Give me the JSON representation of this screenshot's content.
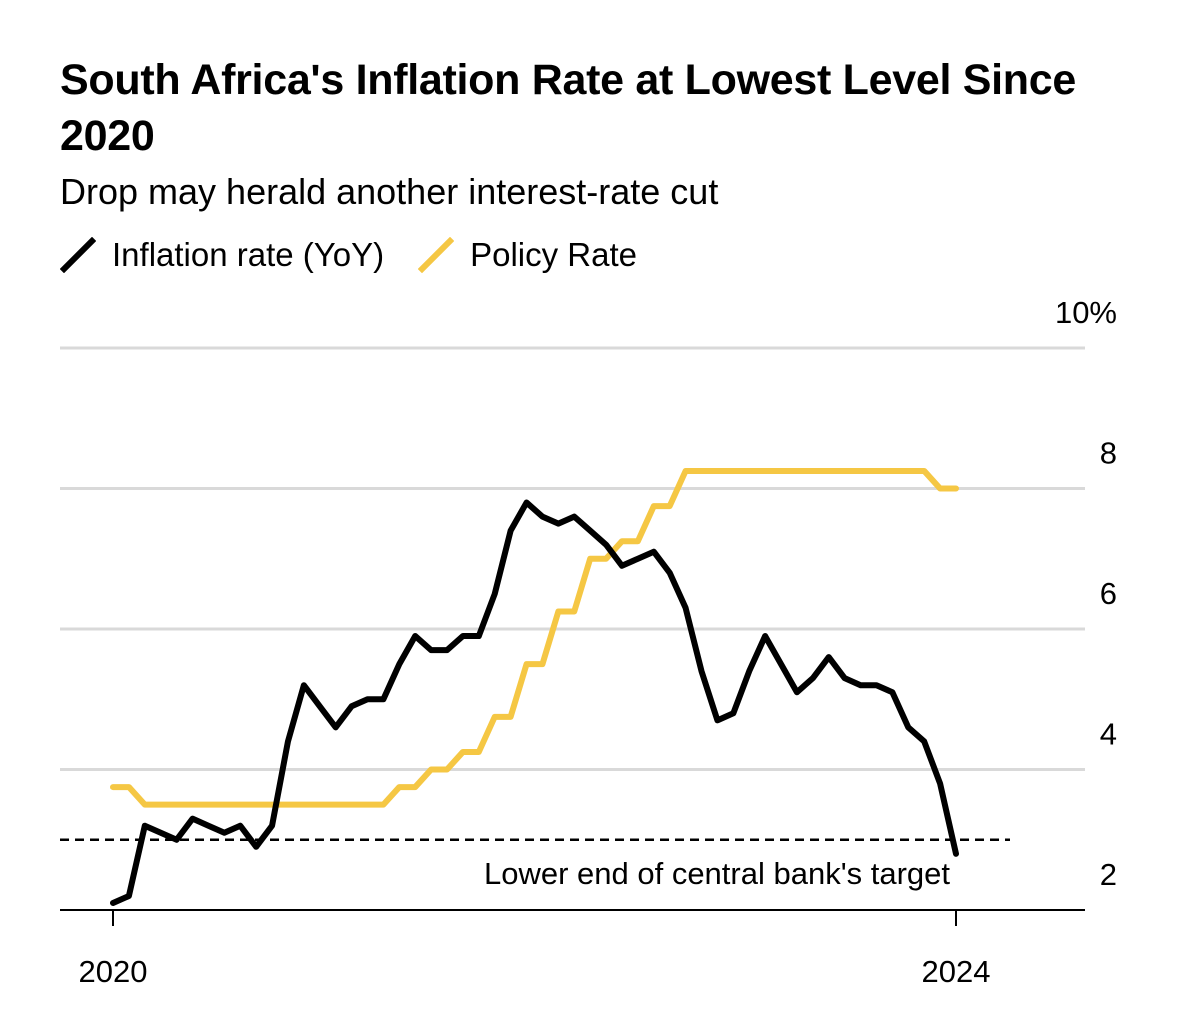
{
  "chart_data": {
    "type": "line",
    "title": "South Africa's Inflation Rate at Lowest Level Since 2020",
    "subtitle": "Drop may herald another interest-rate cut",
    "x_start": "2020-05",
    "x_end": "2024-10",
    "x_ticks": [
      {
        "label": "2020",
        "at": "2020-05"
      },
      {
        "label": "2024",
        "at": "2024-10"
      }
    ],
    "ylim": [
      2,
      10
    ],
    "y_ticks": [
      {
        "value": 10,
        "label": "10%"
      },
      {
        "value": 8,
        "label": "8"
      },
      {
        "value": 6,
        "label": "6"
      },
      {
        "value": 4,
        "label": "4"
      },
      {
        "value": 2,
        "label": "2"
      }
    ],
    "grid": true,
    "legend_position": "top-left",
    "series": [
      {
        "name": "Inflation rate (YoY)",
        "color": "#000000",
        "values": [
          2.1,
          2.2,
          3.2,
          3.1,
          3.0,
          3.3,
          3.2,
          3.1,
          3.2,
          2.9,
          3.2,
          4.4,
          5.2,
          4.9,
          4.6,
          4.9,
          5.0,
          5.0,
          5.5,
          5.9,
          5.7,
          5.7,
          5.9,
          5.9,
          6.5,
          7.4,
          7.8,
          7.6,
          7.5,
          7.6,
          7.4,
          7.2,
          6.9,
          7.0,
          7.1,
          6.8,
          6.3,
          5.4,
          4.7,
          4.8,
          5.4,
          5.9,
          5.5,
          5.1,
          5.3,
          5.6,
          5.3,
          5.2,
          5.2,
          5.1,
          4.6,
          4.4,
          3.8,
          2.8
        ]
      },
      {
        "name": "Policy Rate",
        "color": "#F5C744",
        "values": [
          3.75,
          3.75,
          3.5,
          3.5,
          3.5,
          3.5,
          3.5,
          3.5,
          3.5,
          3.5,
          3.5,
          3.5,
          3.5,
          3.5,
          3.5,
          3.5,
          3.5,
          3.5,
          3.75,
          3.75,
          4.0,
          4.0,
          4.25,
          4.25,
          4.75,
          4.75,
          5.5,
          5.5,
          6.25,
          6.25,
          7.0,
          7.0,
          7.25,
          7.25,
          7.75,
          7.75,
          8.25,
          8.25,
          8.25,
          8.25,
          8.25,
          8.25,
          8.25,
          8.25,
          8.25,
          8.25,
          8.25,
          8.25,
          8.25,
          8.25,
          8.25,
          8.25,
          8.0,
          8.0
        ]
      }
    ],
    "reference_line": {
      "value": 3,
      "label": "Lower end of central bank's target",
      "style": "dashed"
    }
  }
}
